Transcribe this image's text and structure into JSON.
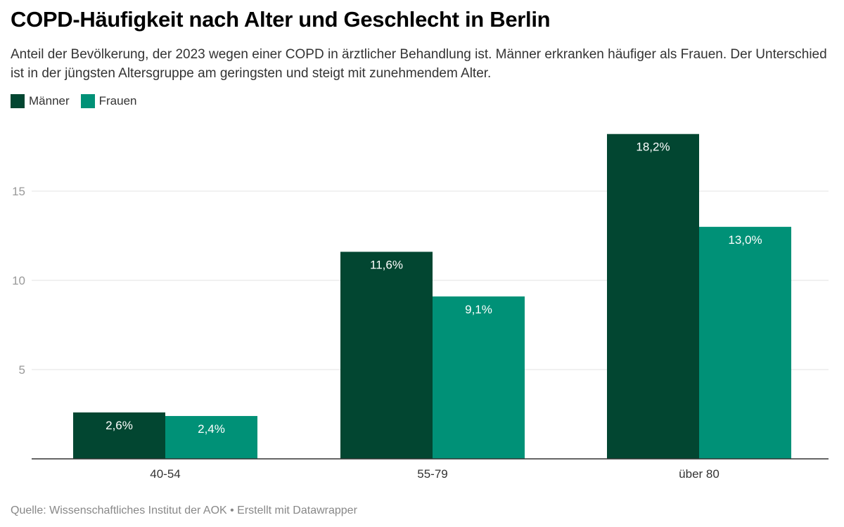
{
  "header": {
    "title": "COPD-Häufigkeit nach Alter und Geschlecht in Berlin",
    "subtitle": "Anteil der Bevölkerung, der 2023 wegen einer COPD in ärztlicher Behandlung ist. Männer erkranken häufiger als Frauen. Der Unterschied ist in der jüngsten Altersgruppe am geringsten und steigt mit zunehmendem Alter."
  },
  "legend": [
    {
      "label": "Männer",
      "color": "#024631"
    },
    {
      "label": "Frauen",
      "color": "#009177"
    }
  ],
  "footer": {
    "source": "Quelle: Wissenschaftliches Institut der AOK • Erstellt mit Datawrapper"
  },
  "chart_data": {
    "type": "bar",
    "title": "COPD-Häufigkeit nach Alter und Geschlecht in Berlin",
    "xlabel": "",
    "ylabel": "",
    "categories": [
      "40-54",
      "55-79",
      "über 80"
    ],
    "series": [
      {
        "name": "Männer",
        "color": "#024631",
        "values": [
          2.6,
          11.6,
          18.2
        ],
        "labels": [
          "2,6%",
          "11,6%",
          "18,2%"
        ]
      },
      {
        "name": "Frauen",
        "color": "#009177",
        "values": [
          2.4,
          9.1,
          13.0
        ],
        "labels": [
          "2,4%",
          "9,1%",
          "13,0%"
        ]
      }
    ],
    "yticks": [
      5,
      10,
      15
    ],
    "ylim": [
      0,
      18.2
    ],
    "grid": true,
    "legend_position": "top-left"
  }
}
